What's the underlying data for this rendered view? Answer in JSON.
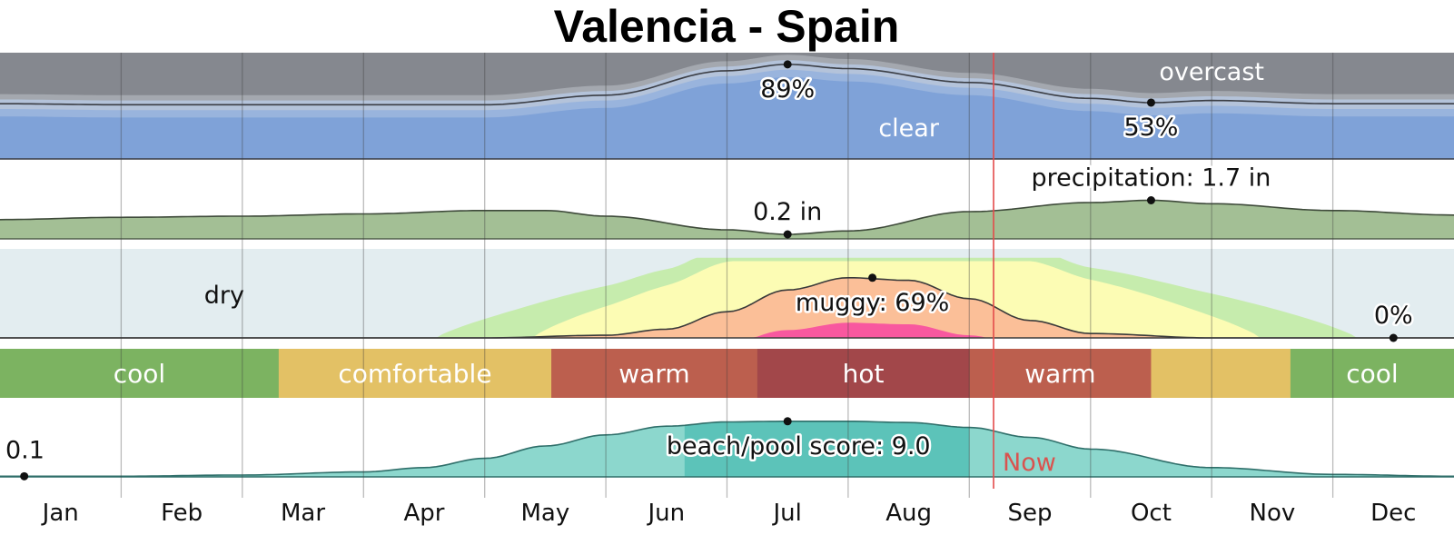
{
  "chart_data": {
    "type": "area",
    "title": "Valencia - Spain",
    "months": [
      "Jan",
      "Feb",
      "Mar",
      "Apr",
      "May",
      "Jun",
      "Jul",
      "Aug",
      "Sep",
      "Oct",
      "Nov",
      "Dec"
    ],
    "now": {
      "label": "Now",
      "month_position": 8.2
    },
    "cloud_cover": {
      "x": [
        0,
        1,
        2,
        3,
        4,
        5,
        6,
        6.5,
        7,
        8,
        9,
        9.5,
        10,
        11,
        12
      ],
      "clear_percent": [
        52,
        51,
        51,
        51,
        51,
        60,
        83,
        89,
        85,
        72,
        57,
        53,
        55,
        52,
        52
      ],
      "labels": {
        "top": "overcast",
        "bottom": "clear"
      },
      "annotations": [
        {
          "text": "89%",
          "month_position": 6.5,
          "value": 89
        },
        {
          "text": "53%",
          "month_position": 9.5,
          "value": 53
        }
      ],
      "colors": {
        "clear": "#7fa2d8",
        "mostly_clear": "#99b4dd",
        "partly": "#b4c3da",
        "mostly_cloudy": "#a4a8af",
        "overcast": "#85888f"
      }
    },
    "precipitation": {
      "x": [
        0,
        1,
        2,
        3,
        4,
        4.5,
        5,
        6,
        6.5,
        7,
        8,
        9,
        9.5,
        10,
        11,
        12
      ],
      "inches": [
        0.85,
        0.95,
        1.0,
        1.1,
        1.25,
        1.25,
        1.0,
        0.4,
        0.2,
        0.35,
        1.2,
        1.6,
        1.7,
        1.55,
        1.25,
        1.05
      ],
      "annotations": [
        {
          "text": "0.2 in",
          "month_position": 6.5,
          "value": 0.2
        },
        {
          "text": "precipitation: 1.7 in",
          "month_position": 9.5,
          "value": 1.7
        }
      ],
      "color": "#a3bf95"
    },
    "humidity": {
      "x": [
        0,
        1,
        2,
        3,
        4,
        5,
        5.5,
        6,
        6.5,
        7,
        7.5,
        8,
        8.5,
        9,
        10,
        11,
        12
      ],
      "muggy_percent": [
        0,
        0,
        0,
        0,
        0,
        3,
        10,
        30,
        55,
        69,
        66,
        45,
        20,
        5,
        0,
        0,
        0
      ],
      "labels": {
        "dry": "dry"
      },
      "annotations": [
        {
          "text": "muggy: 69%",
          "month_position": 7.2,
          "value": 69
        },
        {
          "text": "0%",
          "month_position": 11.5,
          "value": 0
        }
      ],
      "colors": {
        "dry": "#e3edf0",
        "comfortable": "#c6ecad",
        "humid": "#fcfcb4",
        "muggy": "#fbbf98",
        "oppressive": "#f8589f"
      }
    },
    "temperature_bands": [
      {
        "label": "cool",
        "start": 0,
        "end": 2.3,
        "color": "#7cb361"
      },
      {
        "label": "comfortable",
        "start": 2.3,
        "end": 4.55,
        "color": "#e3c165"
      },
      {
        "label": "warm",
        "start": 4.55,
        "end": 6.25,
        "color": "#bc5f4e"
      },
      {
        "label": "hot",
        "start": 6.25,
        "end": 8.0,
        "color": "#a2474a"
      },
      {
        "label": "warm",
        "start": 8.0,
        "end": 9.5,
        "color": "#bc5f4e"
      },
      {
        "label": "",
        "start": 9.5,
        "end": 10.65,
        "color": "#e3c165"
      },
      {
        "label": "cool",
        "start": 10.65,
        "end": 12,
        "color": "#7cb361"
      }
    ],
    "beach_score": {
      "x": [
        0,
        1,
        2,
        3,
        3.5,
        4,
        4.5,
        5,
        5.5,
        6,
        6.5,
        7,
        7.5,
        8,
        8.5,
        9,
        10,
        11,
        12
      ],
      "score": [
        0.1,
        0.1,
        0.3,
        0.8,
        1.5,
        3.0,
        5.0,
        6.8,
        8.2,
        8.9,
        9.0,
        9.0,
        8.8,
        8.0,
        6.4,
        4.5,
        1.5,
        0.4,
        0.1
      ],
      "annotations": [
        {
          "text": "0.1",
          "month_position": 0.2,
          "value": 0.1
        },
        {
          "text": "beach/pool score: 9.0",
          "month_position": 6.5,
          "value": 9.0
        }
      ],
      "colors": {
        "fill": "#8cd7cd",
        "best": "#5cc3b9",
        "line": "#2f6f6a"
      }
    }
  }
}
